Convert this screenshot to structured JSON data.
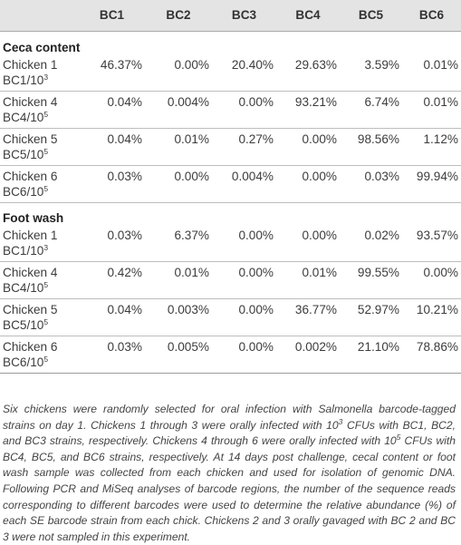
{
  "table": {
    "headers": [
      "",
      "BC1",
      "BC2",
      "BC3",
      "BC4",
      "BC5",
      "BC6"
    ],
    "sections": [
      {
        "title": "Ceca content",
        "rows": [
          {
            "line1": "Chicken 1",
            "line2": "BC1/10",
            "exp": "3",
            "values": [
              "46.37%",
              "0.00%",
              "20.40%",
              "29.63%",
              "3.59%",
              "0.01%"
            ]
          },
          {
            "line1": "Chicken 4",
            "line2": "BC4/10",
            "exp": "5",
            "values": [
              "0.04%",
              "0.004%",
              "0.00%",
              "93.21%",
              "6.74%",
              "0.01%"
            ]
          },
          {
            "line1": "Chicken 5",
            "line2": "BC5/10",
            "exp": "5",
            "values": [
              "0.04%",
              "0.01%",
              "0.27%",
              "0.00%",
              "98.56%",
              "1.12%"
            ]
          },
          {
            "line1": "Chicken 6",
            "line2": "BC6/10",
            "exp": "5",
            "values": [
              "0.03%",
              "0.00%",
              "0.004%",
              "0.00%",
              "0.03%",
              "99.94%"
            ]
          }
        ]
      },
      {
        "title": "Foot wash",
        "rows": [
          {
            "line1": "Chicken 1",
            "line2": "BC1/10",
            "exp": "3",
            "values": [
              "0.03%",
              "6.37%",
              "0.00%",
              "0.00%",
              "0.02%",
              "93.57%"
            ]
          },
          {
            "line1": "Chicken 4",
            "line2": "BC4/10",
            "exp": "5",
            "values": [
              "0.42%",
              "0.01%",
              "0.00%",
              "0.01%",
              "99.55%",
              "0.00%"
            ]
          },
          {
            "line1": "Chicken 5",
            "line2": "BC5/10",
            "exp": "5",
            "values": [
              "0.04%",
              "0.003%",
              "0.00%",
              "36.77%",
              "52.97%",
              "10.21%"
            ]
          },
          {
            "line1": "Chicken 6",
            "line2": "BC6/10",
            "exp": "5",
            "values": [
              "0.03%",
              "0.005%",
              "0.00%",
              "0.002%",
              "21.10%",
              "78.86%"
            ]
          }
        ]
      }
    ]
  },
  "footnote": {
    "p1": "Six chickens were randomly selected for oral infection with Salmonella barcode-tagged strains on day 1. Chickens 1 through 3 were orally infected with 10",
    "p1_exp": "3",
    "p2": " CFUs with BC1, BC2, and BC3 strains, respectively. Chickens 4 through 6 were orally infected with 10",
    "p2_exp": "5",
    "p3": " CFUs with BC4, BC5, and BC6 strains, respectively. At 14 days post challenge, cecal content or foot wash sample was collected from each chicken and used for isolation of genomic DNA. Following PCR and MiSeq analyses of barcode regions, the number of the sequence reads corresponding to different barcodes were used to determine the relative abundance (%) of each SE barcode strain from each chick. Chickens 2 and 3 orally gavaged with BC 2 and BC 3 were not sampled in this experiment."
  }
}
